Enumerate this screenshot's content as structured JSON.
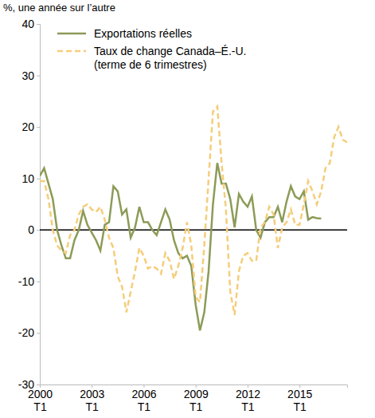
{
  "chart_data": {
    "type": "line",
    "y_label": "%, une année sur l’autre",
    "categories": [
      "2000 T1",
      null,
      null,
      null,
      null,
      null,
      null,
      null,
      null,
      null,
      null,
      null,
      "2003 T1",
      null,
      null,
      null,
      null,
      null,
      null,
      null,
      null,
      null,
      null,
      null,
      "2006 T1",
      null,
      null,
      null,
      null,
      null,
      null,
      null,
      null,
      null,
      null,
      null,
      "2009 T1",
      null,
      null,
      null,
      null,
      null,
      null,
      null,
      null,
      null,
      null,
      null,
      "2012 T1",
      null,
      null,
      null,
      null,
      null,
      null,
      null,
      null,
      null,
      null,
      null,
      "2015 T1",
      null,
      null,
      null,
      null,
      null,
      null,
      null,
      null,
      null,
      null,
      null
    ],
    "series": [
      {
        "name": "Exportations réelles",
        "color": "#8c9b57",
        "line_style": "solid",
        "values": [
          10.5,
          12,
          9,
          6,
          0,
          -3,
          -5.5,
          -5.5,
          -2,
          0,
          3.7,
          1,
          -0.5,
          -2,
          -4,
          1,
          1.5,
          8.5,
          7.5,
          3,
          4,
          -1.5,
          0.5,
          4.5,
          1.5,
          1.5,
          0,
          -1,
          1.5,
          4,
          2,
          -2,
          -4.5,
          -5.5,
          -5,
          -7,
          -14.5,
          -19.5,
          -16,
          -8,
          5,
          13,
          9,
          9,
          6,
          0.5,
          7,
          5.5,
          4.5,
          6.5,
          0,
          -1.5,
          1.5,
          2.5,
          2.5,
          4.5,
          1.5,
          5.5,
          8.5,
          6.5,
          6,
          7.5,
          2,
          2.5,
          2.3,
          2.2,
          null,
          null,
          null,
          null,
          null,
          null
        ]
      },
      {
        "name": "Taux de change Canada–É.-U. (terme de 6 trimestres)",
        "color": "#f5cd7a",
        "line_style": "dashed",
        "values": [
          9.5,
          9.5,
          6,
          0,
          -3,
          -4,
          -4.5,
          -1,
          0,
          3,
          4.5,
          5,
          4,
          3.5,
          4.5,
          2,
          -1.5,
          -3.5,
          -9,
          -11,
          -16,
          -12,
          -8,
          -3.5,
          -5,
          -7.5,
          -7,
          -7.5,
          -8.5,
          -4.5,
          -6,
          -9.5,
          -7,
          -3.5,
          1.5,
          -3,
          -13,
          -14,
          -3,
          10,
          23,
          24,
          13,
          4,
          -12,
          -16.5,
          -8,
          -5,
          -4.5,
          -6,
          -6,
          0.5,
          1.5,
          4.5,
          3,
          -3.5,
          0.5,
          1.5,
          4,
          1,
          1,
          5,
          9.5,
          7.5,
          5,
          7.5,
          12,
          13,
          18,
          20,
          17.5,
          17
        ]
      }
    ],
    "ylim": [
      -30,
      40
    ],
    "yticks": [
      -30,
      -20,
      -10,
      0,
      10,
      20,
      30,
      40
    ],
    "grid": false,
    "legend": "top-left"
  }
}
